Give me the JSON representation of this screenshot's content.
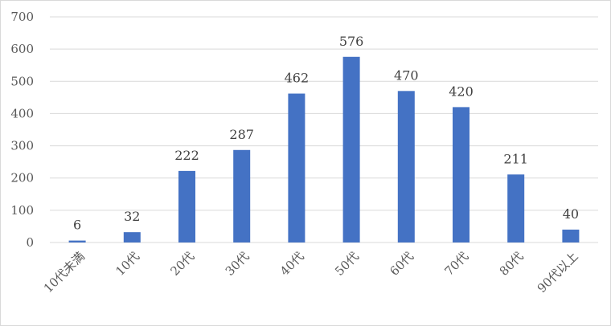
{
  "chart_data": {
    "type": "bar",
    "categories": [
      "10代未満",
      "10代",
      "20代",
      "30代",
      "40代",
      "50代",
      "60代",
      "70代",
      "80代",
      "90代以上"
    ],
    "values": [
      6,
      32,
      222,
      287,
      462,
      576,
      470,
      420,
      211,
      40
    ],
    "ylim": [
      0,
      700
    ],
    "yticks": [
      0,
      100,
      200,
      300,
      400,
      500,
      600,
      700
    ],
    "grid": true,
    "legend": "none",
    "colors": {
      "bar": "#4472c4",
      "grid": "#d9d9d9",
      "text": "#595959"
    }
  }
}
